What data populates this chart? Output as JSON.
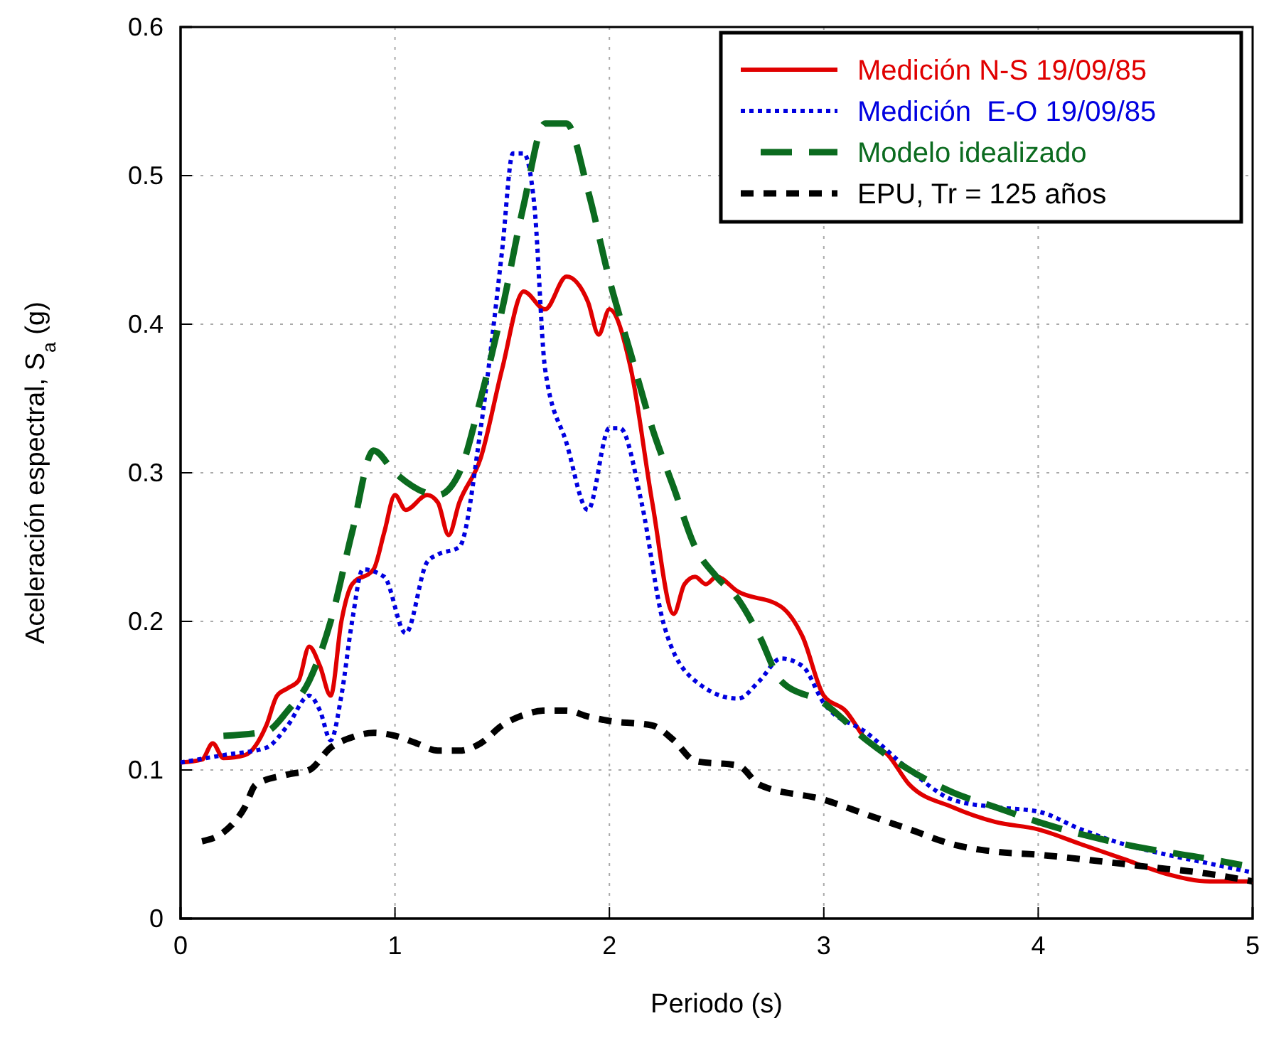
{
  "chart_data": {
    "type": "line",
    "xlabel": "Periodo (s)",
    "ylabel": "Aceleración espectral, S$_{a}$ (g)",
    "xlim": [
      0,
      5
    ],
    "ylim": [
      0,
      0.6
    ],
    "xticks": [
      0,
      1,
      2,
      3,
      4,
      5
    ],
    "yticks": [
      0,
      0.1,
      0.2,
      0.3,
      0.4,
      0.5,
      0.6
    ],
    "grid": true,
    "legend": "top right",
    "marker": "none",
    "series": [
      {
        "name": "Medición N-S 19/09/85",
        "color": "#e00000",
        "line_style": "solid",
        "x": [
          0,
          0.1,
          0.15,
          0.2,
          0.3,
          0.4,
          0.45,
          0.5,
          0.55,
          0.6,
          0.65,
          0.7,
          0.75,
          0.8,
          0.9,
          0.95,
          1.0,
          1.05,
          1.15,
          1.2,
          1.25,
          1.3,
          1.4,
          1.5,
          1.6,
          1.7,
          1.8,
          1.9,
          1.95,
          2.0,
          2.1,
          2.2,
          2.3,
          2.35,
          2.4,
          2.45,
          2.5,
          2.6,
          2.8,
          2.9,
          3.0,
          3.1,
          3.2,
          3.3,
          3.4,
          3.6,
          3.8,
          4.0,
          4.2,
          4.4,
          4.6,
          4.8,
          5.0
        ],
        "values": [
          0.105,
          0.107,
          0.118,
          0.108,
          0.11,
          0.13,
          0.15,
          0.155,
          0.16,
          0.183,
          0.17,
          0.15,
          0.2,
          0.225,
          0.235,
          0.26,
          0.285,
          0.275,
          0.285,
          0.28,
          0.258,
          0.28,
          0.31,
          0.37,
          0.422,
          0.41,
          0.432,
          0.415,
          0.393,
          0.41,
          0.37,
          0.28,
          0.205,
          0.225,
          0.23,
          0.225,
          0.23,
          0.22,
          0.21,
          0.19,
          0.15,
          0.14,
          0.12,
          0.11,
          0.09,
          0.075,
          0.065,
          0.06,
          0.05,
          0.04,
          0.03,
          0.025,
          0.025
        ]
      },
      {
        "name": "Medición  E-O 19/09/85",
        "color": "#0000e0",
        "line_style": "dotted",
        "x": [
          0,
          0.2,
          0.4,
          0.5,
          0.6,
          0.65,
          0.7,
          0.75,
          0.8,
          0.85,
          0.95,
          1.05,
          1.15,
          1.2,
          1.3,
          1.4,
          1.5,
          1.55,
          1.6,
          1.65,
          1.7,
          1.8,
          1.9,
          2.0,
          2.05,
          2.15,
          2.25,
          2.4,
          2.6,
          2.7,
          2.8,
          2.9,
          3.0,
          3.2,
          3.4,
          3.6,
          3.8,
          4.0,
          4.2,
          4.4,
          4.6,
          4.8,
          5.0
        ],
        "values": [
          0.105,
          0.11,
          0.115,
          0.13,
          0.15,
          0.14,
          0.12,
          0.15,
          0.2,
          0.235,
          0.23,
          0.192,
          0.24,
          0.245,
          0.25,
          0.33,
          0.45,
          0.515,
          0.515,
          0.48,
          0.37,
          0.32,
          0.275,
          0.33,
          0.33,
          0.28,
          0.2,
          0.16,
          0.148,
          0.16,
          0.175,
          0.17,
          0.145,
          0.125,
          0.1,
          0.08,
          0.075,
          0.072,
          0.06,
          0.05,
          0.043,
          0.037,
          0.031
        ]
      },
      {
        "name": "Modelo idealizado",
        "color": "#0b6b1f",
        "line_style": "longdash",
        "x": [
          0.2,
          0.4,
          0.5,
          0.6,
          0.7,
          0.8,
          0.9,
          1.0,
          1.2,
          1.3,
          1.4,
          1.5,
          1.6,
          1.7,
          1.8,
          1.9,
          2.0,
          2.1,
          2.2,
          2.3,
          2.4,
          2.5,
          2.6,
          2.7,
          2.8,
          3.0,
          3.2,
          3.4,
          3.6,
          3.8,
          4.0,
          4.4,
          4.8,
          4.95
        ],
        "values": [
          0.123,
          0.126,
          0.14,
          0.16,
          0.2,
          0.26,
          0.315,
          0.3,
          0.285,
          0.3,
          0.35,
          0.41,
          0.48,
          0.535,
          0.535,
          0.49,
          0.43,
          0.38,
          0.33,
          0.29,
          0.25,
          0.23,
          0.215,
          0.19,
          0.16,
          0.145,
          0.12,
          0.1,
          0.085,
          0.075,
          0.065,
          0.05,
          0.04,
          0.036
        ]
      },
      {
        "name": "EPU, Tr = 125 años",
        "color": "#000000",
        "line_style": "dashed",
        "x": [
          0.1,
          0.2,
          0.3,
          0.35,
          0.5,
          0.6,
          0.7,
          0.8,
          0.9,
          1.0,
          1.1,
          1.2,
          1.3,
          1.4,
          1.5,
          1.6,
          1.7,
          1.8,
          1.9,
          2.0,
          2.2,
          2.3,
          2.4,
          2.6,
          2.7,
          3.0,
          3.2,
          3.4,
          3.6,
          3.8,
          4.0,
          4.2,
          4.5,
          4.8,
          5.0
        ],
        "values": [
          0.052,
          0.058,
          0.075,
          0.09,
          0.097,
          0.1,
          0.115,
          0.122,
          0.125,
          0.123,
          0.118,
          0.113,
          0.113,
          0.118,
          0.13,
          0.137,
          0.14,
          0.14,
          0.136,
          0.133,
          0.13,
          0.12,
          0.106,
          0.103,
          0.09,
          0.08,
          0.07,
          0.06,
          0.05,
          0.045,
          0.043,
          0.04,
          0.035,
          0.03,
          0.025
        ]
      }
    ]
  }
}
